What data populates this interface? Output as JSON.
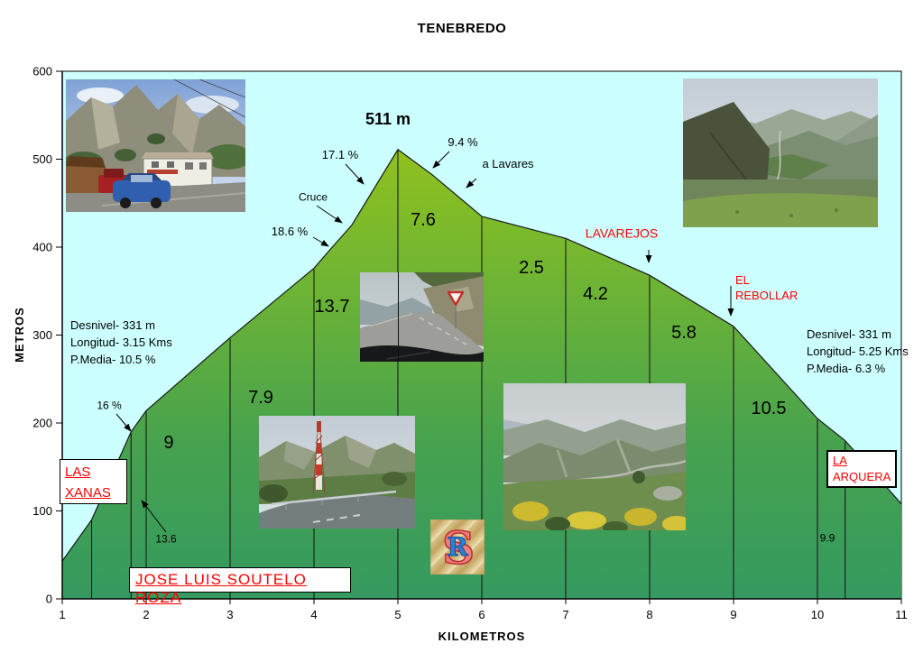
{
  "title": "TENEBREDO",
  "axis": {
    "y_label": "METROS",
    "x_label": "KILOMETROS"
  },
  "labels": {
    "summit": "511 m",
    "grad_17_1": "17.1 %",
    "grad_9_4": "9.4 %",
    "a_lavares": "a Lavares",
    "cruce": "Cruce",
    "grad_18_6": "18.6 %",
    "grad_16": "16 %",
    "seg_13_6": "13.6",
    "seg_9": "9",
    "seg_7_9": "7.9",
    "seg_13_7": "13.7",
    "seg_7_6": "7.6",
    "seg_2_5": "2.5",
    "seg_4_2": "4.2",
    "seg_5_8": "5.8",
    "seg_10_5": "10.5",
    "seg_9_9": "9.9",
    "lavarejos": "LAVAREJOS",
    "el_rebollar_1": "EL",
    "el_rebollar_2": "REBOLLAR"
  },
  "stats_left": {
    "l1": "Desnivel- 331 m",
    "l2": "Longitud- 3.15 Kms",
    "l3": "P.Media- 10.5 %"
  },
  "stats_right": {
    "l1": "Desnivel- 331 m",
    "l2": "Longitud- 5.25 Kms",
    "l3": "P.Media- 6.3 %"
  },
  "boxes": {
    "las_xanas": [
      "LAS",
      "XANAS"
    ],
    "la_arquera": [
      "LA",
      "ARQUERA"
    ],
    "author": "JOSE LUIS SOUTELO ROZA"
  },
  "logo": {
    "letter_s": "S",
    "letter_r": "R"
  },
  "photos": [
    {
      "name": "photo-house",
      "subject": "roadside bar with cars under limestone crag"
    },
    {
      "name": "photo-valley",
      "subject": "deep mountain valley panorama"
    },
    {
      "name": "photo-road-sign",
      "subject": "road between rocks seen from car with warning sign"
    },
    {
      "name": "photo-antenna",
      "subject": "road curve with guardrail and red-white antenna mast"
    },
    {
      "name": "photo-ridge",
      "subject": "mountain ridge with gorse bushes and winding road"
    }
  ],
  "colors": {
    "plot_bg": "#CCFFFF",
    "area_top": "#8FC11E",
    "area_mid": "#55AA44",
    "area_bottom": "#359A60",
    "accent_red": "#FF0000",
    "text": "#000000"
  },
  "chart_data": {
    "type": "area",
    "title": "TENEBREDO",
    "xlabel": "KILOMETROS",
    "ylabel": "METROS",
    "xlim": [
      1,
      11
    ],
    "ylim": [
      0,
      600
    ],
    "x_ticks": [
      1,
      2,
      3,
      4,
      5,
      6,
      7,
      8,
      9,
      10,
      11
    ],
    "y_ticks": [
      0,
      100,
      200,
      300,
      400,
      500,
      600
    ],
    "grid": false,
    "legend": false,
    "summit": {
      "km": 5,
      "elevation_m": 511,
      "label": "511 m"
    },
    "series": [
      {
        "name": "elevation-profile",
        "points_km_m": [
          [
            1,
            43
          ],
          [
            1.35,
            90
          ],
          [
            1.82,
            190
          ],
          [
            2,
            214
          ],
          [
            3,
            297
          ],
          [
            4,
            376
          ],
          [
            4.2,
            398
          ],
          [
            4.45,
            425
          ],
          [
            5,
            511
          ],
          [
            5.4,
            483
          ],
          [
            6,
            435
          ],
          [
            7,
            410
          ],
          [
            8,
            368
          ],
          [
            9,
            310
          ],
          [
            10,
            205
          ],
          [
            10.33,
            180
          ],
          [
            11,
            108
          ]
        ]
      }
    ],
    "segment_boundaries_km": [
      1.35,
      1.82,
      2,
      3,
      4,
      5,
      6,
      7,
      8,
      9,
      10,
      10.33
    ],
    "segments_grade_pct": [
      {
        "from_km": 1.35,
        "to_km": 1.82,
        "grade": 13.6
      },
      {
        "from_km": 1.82,
        "to_km": 2,
        "grade": 16
      },
      {
        "from_km": 2,
        "to_km": 3,
        "grade": 9
      },
      {
        "from_km": 3,
        "to_km": 4,
        "grade": 7.9
      },
      {
        "from_km": 4,
        "to_km": 5,
        "grade": 13.7
      },
      {
        "from_km": 5,
        "to_km": 6,
        "grade": 7.6
      },
      {
        "from_km": 6,
        "to_km": 7,
        "grade": 2.5
      },
      {
        "from_km": 7,
        "to_km": 8,
        "grade": 4.2
      },
      {
        "from_km": 8,
        "to_km": 9,
        "grade": 5.8
      },
      {
        "from_km": 9,
        "to_km": 10,
        "grade": 10.5
      },
      {
        "from_km": 10.33,
        "to_km": 11,
        "grade": 9.9
      }
    ],
    "slope_callouts": [
      {
        "text": "18.6 %",
        "near_km": 4.3
      },
      {
        "text": "17.1 %",
        "near_km": 4.6
      },
      {
        "text": "9.4 %",
        "near_km": 5.35
      },
      {
        "text": "16 %",
        "near_km": 1.85
      }
    ],
    "waypoints": [
      {
        "text": "LAS XANAS",
        "km": 1.82
      },
      {
        "text": "Cruce",
        "km": 4.2
      },
      {
        "text": "a Lavares",
        "km": 5.8
      },
      {
        "text": "LAVAREJOS",
        "km": 8
      },
      {
        "text": "EL REBOLLAR",
        "km": 9
      },
      {
        "text": "LA ARQUERA",
        "km": 10.33
      }
    ],
    "climb_stats": {
      "desnivel_m": 331,
      "longitud_kms": 3.15,
      "p_media_pct": 10.5
    },
    "descent_stats": {
      "desnivel_m": 331,
      "longitud_kms": 5.25,
      "p_media_pct": 6.3
    }
  }
}
